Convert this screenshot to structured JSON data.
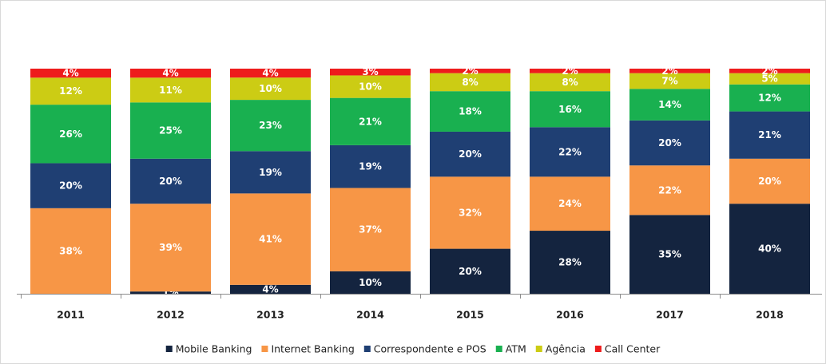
{
  "chart_data": {
    "type": "bar",
    "stacked": true,
    "normalized": true,
    "categories": [
      "2011",
      "2012",
      "2013",
      "2014",
      "2015",
      "2016",
      "2017",
      "2018"
    ],
    "series": [
      {
        "name": "Mobile Banking",
        "color": "#14243f",
        "values": [
          0,
          1,
          4,
          10,
          20,
          28,
          35,
          40
        ],
        "labels": [
          "",
          "1%",
          "4%",
          "10%",
          "20%",
          "28%",
          "35%",
          "40%"
        ]
      },
      {
        "name": "Internet Banking",
        "color": "#f79646",
        "values": [
          38,
          39,
          41,
          37,
          32,
          24,
          22,
          20
        ],
        "labels": [
          "38%",
          "39%",
          "41%",
          "37%",
          "32%",
          "24%",
          "22%",
          "20%"
        ]
      },
      {
        "name": "Correspondente e POS",
        "color": "#1f3f73",
        "values": [
          20,
          20,
          19,
          19,
          20,
          22,
          20,
          21
        ],
        "labels": [
          "20%",
          "20%",
          "19%",
          "19%",
          "20%",
          "22%",
          "20%",
          "21%"
        ]
      },
      {
        "name": "ATM",
        "color": "#19b050",
        "values": [
          26,
          25,
          23,
          21,
          18,
          16,
          14,
          12
        ],
        "labels": [
          "26%",
          "25%",
          "23%",
          "21%",
          "18%",
          "16%",
          "14%",
          "12%"
        ]
      },
      {
        "name": "Agência",
        "color": "#cccc14",
        "values": [
          12,
          11,
          10,
          10,
          8,
          8,
          7,
          5
        ],
        "labels": [
          "12%",
          "11%",
          "10%",
          "10%",
          "8%",
          "8%",
          "7%",
          "5%"
        ]
      },
      {
        "name": "Call Center",
        "color": "#ee1c1c",
        "values": [
          4,
          4,
          4,
          3,
          2,
          2,
          2,
          2
        ],
        "labels": [
          "4%",
          "4%",
          "4%",
          "3%",
          "2%",
          "2%",
          "2%",
          "2%"
        ]
      }
    ],
    "ylim": [
      0,
      100
    ],
    "grid": false,
    "legend_position": "bottom"
  }
}
